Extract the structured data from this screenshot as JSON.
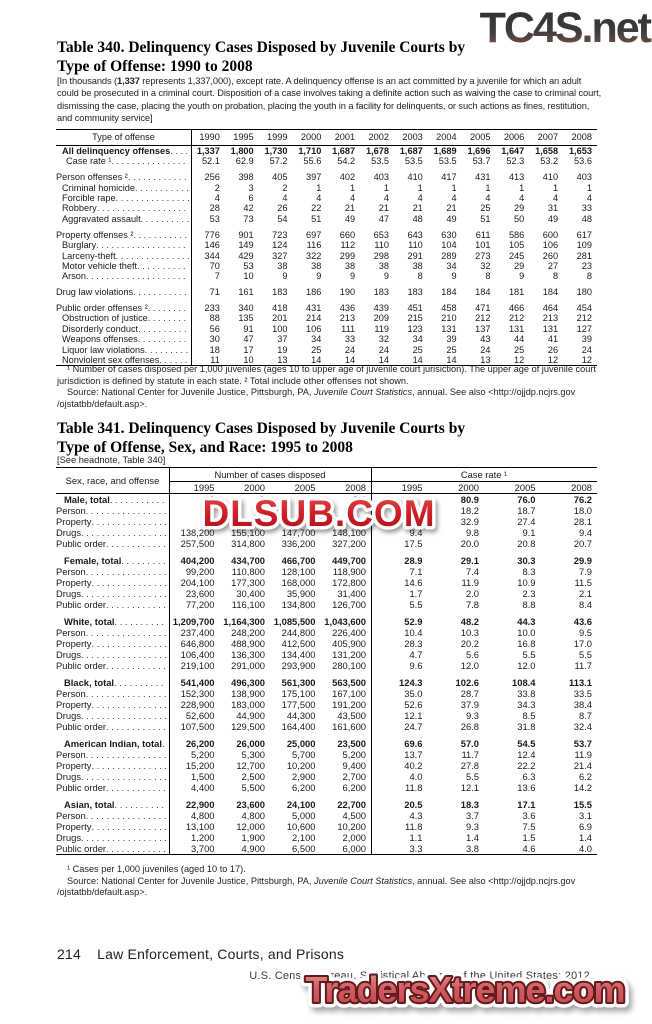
{
  "watermarks": {
    "top": "TC4S.net",
    "middle": "DLSUB.COM",
    "bottom": "TradersXtreme.com"
  },
  "colors": {
    "wm_red": "#cc1f26",
    "wm_coral": "#cf5a5c",
    "wm_dark": "#3a3a3a"
  },
  "footer": {
    "page_number": "214",
    "section": "Law Enforcement, Courts, and Prisons",
    "credit": "U.S. Census Bureau, Statistical Abstract of the United States: 2012"
  },
  "table340": {
    "title_line1": "Table 340. Delinquency Cases Disposed by Juvenile Courts by",
    "title_line2": "Type of Offense: 1990 to 2008",
    "headnote_pre": "[In thousands (",
    "headnote_bold": "1,337",
    "headnote_post": " represents 1,337,000), except rate. A delinquency offense is an act committed by a juvenile for which an adult could be prosecuted in a criminal court. Disposition of a case involves taking a definite action such as waiving the case to criminal court, dismissing the case, placing the youth on probation, placing the youth in a facility for delinquents, or such actions as fines, restitution, and community service]",
    "stub_header": "Type of offense",
    "years": [
      "1990",
      "1995",
      "1999",
      "2000",
      "2001",
      "2002",
      "2003",
      "2004",
      "2005",
      "2006",
      "2007",
      "2008"
    ],
    "rows": [
      {
        "label": "All delinquency offenses",
        "indent": 6,
        "bold": true,
        "gap": false,
        "values": [
          "1,337",
          "1,800",
          "1,730",
          "1,710",
          "1,687",
          "1,678",
          "1,687",
          "1,689",
          "1,696",
          "1,647",
          "1,658",
          "1,653"
        ]
      },
      {
        "label": "Case rate ¹",
        "indent": 10,
        "bold": false,
        "gap": false,
        "values": [
          "52.1",
          "62.9",
          "57.2",
          "55.6",
          "54.2",
          "53.5",
          "53.5",
          "53.5",
          "53.7",
          "52.3",
          "53.2",
          "53.6"
        ]
      },
      {
        "label": "Person offenses ²",
        "indent": 0,
        "bold": false,
        "gap": true,
        "values": [
          "256",
          "398",
          "405",
          "397",
          "402",
          "403",
          "410",
          "417",
          "431",
          "413",
          "410",
          "403"
        ]
      },
      {
        "label": "Criminal homicide",
        "indent": 6,
        "bold": false,
        "gap": false,
        "values": [
          "2",
          "3",
          "2",
          "1",
          "1",
          "1",
          "1",
          "1",
          "1",
          "1",
          "1",
          "1"
        ]
      },
      {
        "label": "Forcible rape",
        "indent": 6,
        "bold": false,
        "gap": false,
        "values": [
          "4",
          "6",
          "4",
          "4",
          "4",
          "4",
          "4",
          "4",
          "4",
          "4",
          "4",
          "4"
        ]
      },
      {
        "label": "Robbery",
        "indent": 6,
        "bold": false,
        "gap": false,
        "values": [
          "28",
          "42",
          "26",
          "22",
          "21",
          "21",
          "21",
          "21",
          "25",
          "29",
          "31",
          "33"
        ]
      },
      {
        "label": "Aggravated assault",
        "indent": 6,
        "bold": false,
        "gap": false,
        "values": [
          "53",
          "73",
          "54",
          "51",
          "49",
          "47",
          "48",
          "49",
          "51",
          "50",
          "49",
          "48"
        ]
      },
      {
        "label": "Property offenses ²",
        "indent": 0,
        "bold": false,
        "gap": true,
        "values": [
          "776",
          "901",
          "723",
          "697",
          "660",
          "653",
          "643",
          "630",
          "611",
          "586",
          "600",
          "617"
        ]
      },
      {
        "label": "Burglary",
        "indent": 6,
        "bold": false,
        "gap": false,
        "values": [
          "146",
          "149",
          "124",
          "116",
          "112",
          "110",
          "110",
          "104",
          "101",
          "105",
          "106",
          "109"
        ]
      },
      {
        "label": "Larceny-theft",
        "indent": 6,
        "bold": false,
        "gap": false,
        "values": [
          "344",
          "429",
          "327",
          "322",
          "299",
          "298",
          "291",
          "289",
          "273",
          "245",
          "260",
          "281"
        ]
      },
      {
        "label": "Motor vehicle theft",
        "indent": 6,
        "bold": false,
        "gap": false,
        "values": [
          "70",
          "53",
          "38",
          "38",
          "38",
          "38",
          "38",
          "34",
          "32",
          "29",
          "27",
          "23"
        ]
      },
      {
        "label": "Arson",
        "indent": 6,
        "bold": false,
        "gap": false,
        "values": [
          "7",
          "10",
          "9",
          "9",
          "9",
          "9",
          "8",
          "9",
          "8",
          "9",
          "8",
          "8"
        ]
      },
      {
        "label": "Drug law violations",
        "indent": 0,
        "bold": false,
        "gap": true,
        "values": [
          "71",
          "161",
          "183",
          "186",
          "190",
          "183",
          "183",
          "184",
          "184",
          "181",
          "184",
          "180"
        ]
      },
      {
        "label": "Public order offenses ²",
        "indent": 0,
        "bold": false,
        "gap": true,
        "values": [
          "233",
          "340",
          "418",
          "431",
          "436",
          "439",
          "451",
          "458",
          "471",
          "466",
          "464",
          "454"
        ]
      },
      {
        "label": "Obstruction of justice",
        "indent": 6,
        "bold": false,
        "gap": false,
        "values": [
          "88",
          "135",
          "201",
          "214",
          "213",
          "209",
          "215",
          "210",
          "212",
          "212",
          "213",
          "212"
        ]
      },
      {
        "label": "Disorderly conduct",
        "indent": 6,
        "bold": false,
        "gap": false,
        "values": [
          "56",
          "91",
          "100",
          "106",
          "111",
          "119",
          "123",
          "131",
          "137",
          "131",
          "131",
          "127"
        ]
      },
      {
        "label": "Weapons offenses",
        "indent": 6,
        "bold": false,
        "gap": false,
        "values": [
          "30",
          "47",
          "37",
          "34",
          "33",
          "32",
          "34",
          "39",
          "43",
          "44",
          "41",
          "39"
        ]
      },
      {
        "label": "Liquor law violations",
        "indent": 6,
        "bold": false,
        "gap": false,
        "values": [
          "18",
          "17",
          "19",
          "25",
          "24",
          "24",
          "25",
          "25",
          "24",
          "25",
          "26",
          "24"
        ]
      },
      {
        "label": "Nonviolent sex offenses",
        "indent": 6,
        "bold": false,
        "gap": false,
        "values": [
          "11",
          "10",
          "13",
          "14",
          "14",
          "14",
          "14",
          "14",
          "13",
          "12",
          "12",
          "12"
        ]
      }
    ],
    "footnotes": "¹ Number of cases disposed per 1,000 juveniles (ages 10 to upper age of juvenile court jurisiction). The upper age of juvenile court jurisdiction is defined by statute in each state. ² Total include other offenses not shown.",
    "source_prefix": "Source: National Center for Juvenile Justice, Pittsburgh, PA, ",
    "source_italic": "Juvenile Court Statistics",
    "source_suffix": ", annual. See also <http://ojjdp.ncjrs.gov /ojstatbb/default.asp>."
  },
  "table341": {
    "title_line1": "Table 341. Delinquency Cases Disposed by Juvenile Courts by",
    "title_line2": "Type of Offense, Sex, and Race: 1995 to 2008",
    "headnote": "[See headnote, Table 340]",
    "stub_header": "Sex, race, and offense",
    "group1_header": "Number of cases disposed",
    "group2_header": "Case rate ¹",
    "years": [
      "1995",
      "2000",
      "2005",
      "2008"
    ],
    "rows": [
      {
        "label": "Male, total",
        "indent": 8,
        "bold": true,
        "gap": false,
        "values": [
          "1",
          "2",
          "",
          "1,2",
          "",
          "80.9",
          "76.0",
          "76.2"
        ]
      },
      {
        "label": "Person",
        "indent": 0,
        "bold": false,
        "gap": false,
        "values": [
          "",
          "",
          "",
          "",
          "",
          "18.2",
          "18.7",
          "18.0"
        ]
      },
      {
        "label": "Property",
        "indent": 0,
        "bold": false,
        "gap": false,
        "values": [
          "",
          "",
          "",
          "",
          "",
          "32.9",
          "27.4",
          "28.1"
        ]
      },
      {
        "label": "Drugs",
        "indent": 0,
        "bold": false,
        "gap": false,
        "values": [
          "138,200",
          "155,100",
          "147,700",
          "148,100",
          "9.4",
          "9.8",
          "9.1",
          "9.4"
        ]
      },
      {
        "label": "Public order",
        "indent": 0,
        "bold": false,
        "gap": false,
        "values": [
          "257,500",
          "314,800",
          "336,200",
          "327,200",
          "17.5",
          "20.0",
          "20.8",
          "20.7"
        ]
      },
      {
        "label": "Female, total",
        "indent": 8,
        "bold": true,
        "gap": true,
        "values": [
          "404,200",
          "434,700",
          "466,700",
          "449,700",
          "28.9",
          "29.1",
          "30.3",
          "29.9"
        ]
      },
      {
        "label": "Person",
        "indent": 0,
        "bold": false,
        "gap": false,
        "values": [
          "99,200",
          "110,800",
          "128,100",
          "118,900",
          "7.1",
          "7.4",
          "8.3",
          "7.9"
        ]
      },
      {
        "label": "Property",
        "indent": 0,
        "bold": false,
        "gap": false,
        "values": [
          "204,100",
          "177,300",
          "168,000",
          "172,800",
          "14.6",
          "11.9",
          "10.9",
          "11.5"
        ]
      },
      {
        "label": "Drugs",
        "indent": 0,
        "bold": false,
        "gap": false,
        "values": [
          "23,600",
          "30,400",
          "35,900",
          "31,400",
          "1.7",
          "2.0",
          "2.3",
          "2.1"
        ]
      },
      {
        "label": "Public order",
        "indent": 0,
        "bold": false,
        "gap": false,
        "values": [
          "77,200",
          "116,100",
          "134,800",
          "126,700",
          "5.5",
          "7.8",
          "8.8",
          "8.4"
        ]
      },
      {
        "label": "White, total",
        "indent": 8,
        "bold": true,
        "gap": true,
        "values": [
          "1,209,700",
          "1,164,300",
          "1,085,500",
          "1,043,600",
          "52.9",
          "48.2",
          "44.3",
          "43.6"
        ]
      },
      {
        "label": "Person",
        "indent": 0,
        "bold": false,
        "gap": false,
        "values": [
          "237,400",
          "248,200",
          "244,800",
          "226,400",
          "10.4",
          "10.3",
          "10.0",
          "9.5"
        ]
      },
      {
        "label": "Property",
        "indent": 0,
        "bold": false,
        "gap": false,
        "values": [
          "646,800",
          "488,900",
          "412,500",
          "405,900",
          "28.3",
          "20.2",
          "16.8",
          "17.0"
        ]
      },
      {
        "label": "Drugs",
        "indent": 0,
        "bold": false,
        "gap": false,
        "values": [
          "106,400",
          "136,300",
          "134,400",
          "131,200",
          "4.7",
          "5.6",
          "5.5",
          "5.5"
        ]
      },
      {
        "label": "Public order",
        "indent": 0,
        "bold": false,
        "gap": false,
        "values": [
          "219,100",
          "291,000",
          "293,900",
          "280,100",
          "9.6",
          "12.0",
          "12.0",
          "11.7"
        ]
      },
      {
        "label": "Black, total",
        "indent": 8,
        "bold": true,
        "gap": true,
        "values": [
          "541,400",
          "496,300",
          "561,300",
          "563,500",
          "124.3",
          "102.6",
          "108.4",
          "113.1"
        ]
      },
      {
        "label": "Person",
        "indent": 0,
        "bold": false,
        "gap": false,
        "values": [
          "152,300",
          "138,900",
          "175,100",
          "167,100",
          "35.0",
          "28.7",
          "33.8",
          "33.5"
        ]
      },
      {
        "label": "Property",
        "indent": 0,
        "bold": false,
        "gap": false,
        "values": [
          "228,900",
          "183,000",
          "177,500",
          "191,200",
          "52.6",
          "37.9",
          "34.3",
          "38.4"
        ]
      },
      {
        "label": "Drugs",
        "indent": 0,
        "bold": false,
        "gap": false,
        "values": [
          "52,600",
          "44,900",
          "44,300",
          "43,500",
          "12.1",
          "9.3",
          "8.5",
          "8.7"
        ]
      },
      {
        "label": "Public order",
        "indent": 0,
        "bold": false,
        "gap": false,
        "values": [
          "107,500",
          "129,500",
          "164,400",
          "161,600",
          "24.7",
          "26.8",
          "31.8",
          "32.4"
        ]
      },
      {
        "label": "American Indian, total",
        "indent": 8,
        "bold": true,
        "gap": true,
        "values": [
          "26,200",
          "26,000",
          "25,000",
          "23,500",
          "69.6",
          "57.0",
          "54.5",
          "53.7"
        ]
      },
      {
        "label": "Person",
        "indent": 0,
        "bold": false,
        "gap": false,
        "values": [
          "5,200",
          "5,300",
          "5,700",
          "5,200",
          "13.7",
          "11.7",
          "12.4",
          "11.9"
        ]
      },
      {
        "label": "Property",
        "indent": 0,
        "bold": false,
        "gap": false,
        "values": [
          "15,200",
          "12,700",
          "10,200",
          "9,400",
          "40.2",
          "27.8",
          "22.2",
          "21.4"
        ]
      },
      {
        "label": "Drugs",
        "indent": 0,
        "bold": false,
        "gap": false,
        "values": [
          "1,500",
          "2,500",
          "2,900",
          "2,700",
          "4.0",
          "5.5",
          "6.3",
          "6.2"
        ]
      },
      {
        "label": "Public order",
        "indent": 0,
        "bold": false,
        "gap": false,
        "values": [
          "4,400",
          "5,500",
          "6,200",
          "6,200",
          "11.8",
          "12.1",
          "13.6",
          "14.2"
        ]
      },
      {
        "label": "Asian, total",
        "indent": 8,
        "bold": true,
        "gap": true,
        "values": [
          "22,900",
          "23,600",
          "24,100",
          "22,700",
          "20.5",
          "18.3",
          "17.1",
          "15.5"
        ]
      },
      {
        "label": "Person",
        "indent": 0,
        "bold": false,
        "gap": false,
        "values": [
          "4,800",
          "4,800",
          "5,000",
          "4,500",
          "4.3",
          "3.7",
          "3.6",
          "3.1"
        ]
      },
      {
        "label": "Property",
        "indent": 0,
        "bold": false,
        "gap": false,
        "values": [
          "13,100",
          "12,000",
          "10,600",
          "10,200",
          "11.8",
          "9.3",
          "7.5",
          "6.9"
        ]
      },
      {
        "label": "Drugs",
        "indent": 0,
        "bold": false,
        "gap": false,
        "values": [
          "1,200",
          "1,900",
          "2,100",
          "2,000",
          "1.1",
          "1.4",
          "1.5",
          "1.4"
        ]
      },
      {
        "label": "Public order",
        "indent": 0,
        "bold": false,
        "gap": false,
        "values": [
          "3,700",
          "4,900",
          "6,500",
          "6,000",
          "3.3",
          "3.8",
          "4.6",
          "4.0"
        ]
      }
    ],
    "footnotes": "¹ Cases per 1,000 juveniles (aged 10 to 17).",
    "source_prefix": "Source: National Center for Juvenile Justice, Pittsburgh, PA, ",
    "source_italic": "Juvenile Court Statistics",
    "source_suffix": ", annual. See also <http://ojjdp.ncjrs.gov /ojstatbb/default.asp>."
  }
}
